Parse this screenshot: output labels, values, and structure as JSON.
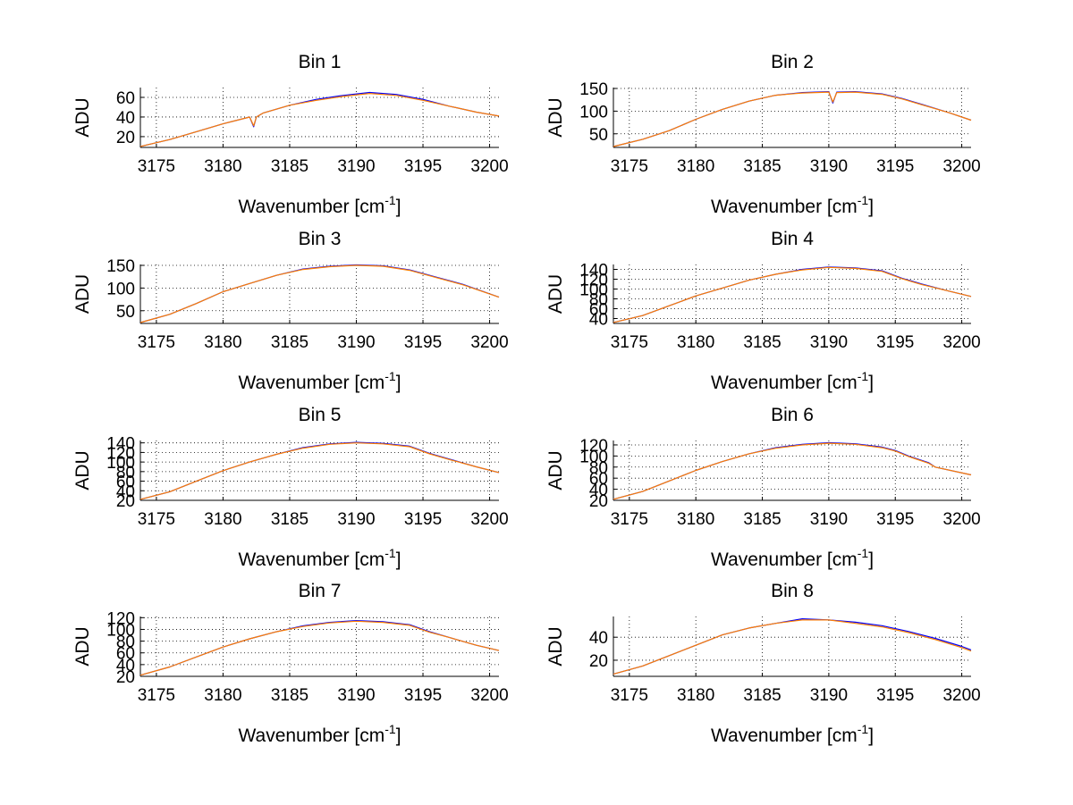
{
  "figure": {
    "background": "#ffffff"
  },
  "chart_data": [
    {
      "type": "line",
      "title": "Bin 1",
      "xlabel": "Wavenumber [cm",
      "xlabel_sup": "-1",
      "xlabel_end": "]",
      "ylabel": "ADU",
      "xlim": [
        3173.8,
        3200.7
      ],
      "ylim": [
        9,
        70
      ],
      "xticks": [
        3175,
        3180,
        3185,
        3190,
        3195,
        3200
      ],
      "yticks": [
        20,
        40,
        60
      ],
      "grid": true,
      "series": [
        {
          "color": "#0000ff",
          "x": [
            3173.8,
            3176,
            3178,
            3180,
            3182,
            3182.3,
            3182.5,
            3183,
            3185,
            3187,
            3189,
            3191,
            3193,
            3195,
            3197,
            3199,
            3200.7
          ],
          "y": [
            10,
            17,
            25,
            33,
            40,
            30,
            40,
            44,
            52,
            58,
            62,
            65,
            63,
            58,
            51,
            45,
            41
          ]
        },
        {
          "color": "#ff7f00",
          "x": [
            3173.8,
            3176,
            3178,
            3180,
            3182,
            3182.3,
            3182.5,
            3183,
            3185,
            3187,
            3189,
            3191,
            3193,
            3195,
            3197,
            3199,
            3200.7
          ],
          "y": [
            10,
            17,
            25,
            33,
            40,
            31,
            40,
            44,
            52,
            57,
            61,
            64,
            62,
            57,
            51,
            45,
            41
          ]
        }
      ]
    },
    {
      "type": "line",
      "title": "Bin 2",
      "xlabel": "Wavenumber [cm",
      "xlabel_sup": "-1",
      "xlabel_end": "]",
      "ylabel": "ADU",
      "xlim": [
        3173.8,
        3200.7
      ],
      "ylim": [
        20,
        152
      ],
      "xticks": [
        3175,
        3180,
        3185,
        3190,
        3195,
        3200
      ],
      "yticks": [
        50,
        100,
        150
      ],
      "grid": true,
      "series": [
        {
          "color": "#0000ff",
          "x": [
            3173.8,
            3176,
            3178,
            3180,
            3182,
            3184,
            3186,
            3188,
            3190,
            3190.3,
            3190.6,
            3192,
            3194,
            3195.5,
            3197,
            3199,
            3200.7
          ],
          "y": [
            22,
            38,
            57,
            82,
            104,
            122,
            135,
            141,
            143,
            118,
            142,
            143,
            138,
            128,
            115,
            97,
            80
          ]
        },
        {
          "color": "#ff7f00",
          "x": [
            3173.8,
            3176,
            3178,
            3180,
            3182,
            3184,
            3186,
            3188,
            3190,
            3190.3,
            3190.6,
            3192,
            3194,
            3195.5,
            3197,
            3199,
            3200.7
          ],
          "y": [
            22,
            38,
            57,
            82,
            104,
            122,
            135,
            140,
            142,
            120,
            141,
            142,
            137,
            127,
            114,
            97,
            80
          ]
        }
      ]
    },
    {
      "type": "line",
      "title": "Bin 3",
      "xlabel": "Wavenumber [cm",
      "xlabel_sup": "-1",
      "xlabel_end": "]",
      "ylabel": "ADU",
      "xlim": [
        3173.8,
        3200.7
      ],
      "ylim": [
        22,
        152
      ],
      "xticks": [
        3175,
        3180,
        3185,
        3190,
        3195,
        3200
      ],
      "yticks": [
        50,
        100,
        150
      ],
      "grid": true,
      "series": [
        {
          "color": "#0000ff",
          "x": [
            3173.8,
            3176,
            3178,
            3180,
            3182,
            3184,
            3186,
            3188,
            3190,
            3192,
            3194,
            3196,
            3198,
            3200.7
          ],
          "y": [
            24,
            42,
            66,
            92,
            110,
            128,
            142,
            148,
            151,
            149,
            140,
            124,
            108,
            80
          ]
        },
        {
          "color": "#ff7f00",
          "x": [
            3173.8,
            3176,
            3178,
            3180,
            3182,
            3184,
            3186,
            3188,
            3190,
            3192,
            3194,
            3196,
            3198,
            3200.7
          ],
          "y": [
            24,
            42,
            66,
            92,
            110,
            128,
            141,
            147,
            150,
            148,
            139,
            123,
            107,
            80
          ]
        }
      ]
    },
    {
      "type": "line",
      "title": "Bin 4",
      "xlabel": "Wavenumber [cm",
      "xlabel_sup": "-1",
      "xlabel_end": "]",
      "ylabel": "ADU",
      "xlim": [
        3173.8,
        3200.7
      ],
      "ylim": [
        30,
        150
      ],
      "xticks": [
        3175,
        3180,
        3185,
        3190,
        3195,
        3200
      ],
      "yticks": [
        40,
        60,
        80,
        100,
        120,
        140
      ],
      "ytick_labels": [
        "40",
        "60",
        "80",
        "100",
        "120",
        "140"
      ],
      "grid": true,
      "series": [
        {
          "color": "#0000ff",
          "x": [
            3173.8,
            3176,
            3178,
            3180,
            3182,
            3184,
            3186,
            3188,
            3190,
            3192,
            3194,
            3195.5,
            3197,
            3199,
            3200.7
          ],
          "y": [
            32,
            46,
            66,
            86,
            102,
            118,
            130,
            140,
            145,
            143,
            137,
            122,
            110,
            96,
            85
          ]
        },
        {
          "color": "#ff7f00",
          "x": [
            3173.8,
            3176,
            3178,
            3180,
            3182,
            3184,
            3186,
            3188,
            3190,
            3192,
            3194,
            3195.5,
            3197,
            3199,
            3200.7
          ],
          "y": [
            32,
            46,
            66,
            86,
            102,
            118,
            130,
            139,
            144,
            142,
            136,
            121,
            109,
            96,
            85
          ]
        }
      ]
    },
    {
      "type": "line",
      "title": "Bin 5",
      "xlabel": "Wavenumber [cm",
      "xlabel_sup": "-1",
      "xlabel_end": "]",
      "ylabel": "ADU",
      "xlim": [
        3173.8,
        3200.7
      ],
      "ylim": [
        20,
        145
      ],
      "xticks": [
        3175,
        3180,
        3185,
        3190,
        3195,
        3200
      ],
      "yticks": [
        20,
        40,
        60,
        80,
        100,
        120,
        140
      ],
      "ytick_labels": [
        "20",
        "40",
        "60",
        "80",
        "100",
        "120",
        "140"
      ],
      "grid": true,
      "series": [
        {
          "color": "#0000ff",
          "x": [
            3173.8,
            3176,
            3178,
            3180,
            3182,
            3184,
            3186,
            3188,
            3190,
            3192,
            3194,
            3195.5,
            3197,
            3199,
            3200.7
          ],
          "y": [
            22,
            38,
            60,
            82,
            100,
            116,
            130,
            138,
            141,
            139,
            133,
            118,
            106,
            90,
            78
          ]
        },
        {
          "color": "#ff7f00",
          "x": [
            3173.8,
            3176,
            3178,
            3180,
            3182,
            3184,
            3186,
            3188,
            3190,
            3192,
            3194,
            3195.5,
            3197,
            3199,
            3200.7
          ],
          "y": [
            22,
            38,
            60,
            82,
            100,
            116,
            129,
            137,
            140,
            138,
            132,
            117,
            105,
            90,
            78
          ]
        }
      ]
    },
    {
      "type": "line",
      "title": "Bin 6",
      "xlabel": "Wavenumber [cm",
      "xlabel_sup": "-1",
      "xlabel_end": "]",
      "ylabel": "ADU",
      "xlim": [
        3173.8,
        3200.7
      ],
      "ylim": [
        20,
        128
      ],
      "xticks": [
        3175,
        3180,
        3185,
        3190,
        3195,
        3200
      ],
      "yticks": [
        20,
        40,
        60,
        80,
        100,
        120
      ],
      "ytick_labels": [
        "20",
        "40",
        "60",
        "80",
        "100",
        "120"
      ],
      "grid": true,
      "series": [
        {
          "color": "#0000ff",
          "x": [
            3173.8,
            3176,
            3178,
            3180,
            3182,
            3184,
            3186,
            3188,
            3190,
            3192,
            3194,
            3195,
            3196,
            3197.5,
            3198,
            3200.7
          ],
          "y": [
            22,
            36,
            55,
            74,
            90,
            104,
            115,
            121,
            124,
            122,
            116,
            110,
            100,
            88,
            80,
            66
          ]
        },
        {
          "color": "#ff7f00",
          "x": [
            3173.8,
            3176,
            3178,
            3180,
            3182,
            3184,
            3186,
            3188,
            3190,
            3192,
            3194,
            3195,
            3196,
            3197.5,
            3198,
            3200.7
          ],
          "y": [
            22,
            36,
            55,
            74,
            90,
            104,
            114,
            120,
            123,
            121,
            115,
            109,
            99,
            87,
            80,
            66
          ]
        }
      ]
    },
    {
      "type": "line",
      "title": "Bin 7",
      "xlabel": "Wavenumber [cm",
      "xlabel_sup": "-1",
      "xlabel_end": "]",
      "ylabel": "ADU",
      "xlim": [
        3173.8,
        3200.7
      ],
      "ylim": [
        20,
        122
      ],
      "xticks": [
        3175,
        3180,
        3185,
        3190,
        3195,
        3200
      ],
      "yticks": [
        20,
        40,
        60,
        80,
        100,
        120
      ],
      "ytick_labels": [
        "20",
        "40",
        "60",
        "80",
        "100",
        "120"
      ],
      "grid": true,
      "series": [
        {
          "color": "#0000ff",
          "x": [
            3173.8,
            3176,
            3178,
            3180,
            3182,
            3184,
            3186,
            3188,
            3190,
            3192,
            3194,
            3195.5,
            3197,
            3199,
            3200.7
          ],
          "y": [
            22,
            36,
            53,
            70,
            84,
            96,
            106,
            112,
            115,
            113,
            108,
            96,
            86,
            73,
            64
          ]
        },
        {
          "color": "#ff7f00",
          "x": [
            3173.8,
            3176,
            3178,
            3180,
            3182,
            3184,
            3186,
            3188,
            3190,
            3192,
            3194,
            3195.5,
            3197,
            3199,
            3200.7
          ],
          "y": [
            22,
            36,
            53,
            70,
            84,
            96,
            105,
            111,
            114,
            112,
            107,
            95,
            86,
            73,
            64
          ]
        }
      ]
    },
    {
      "type": "line",
      "title": "Bin 8",
      "xlabel": "Wavenumber [cm",
      "xlabel_sup": "-1",
      "xlabel_end": "]",
      "ylabel": "ADU",
      "xlim": [
        3173.8,
        3200.7
      ],
      "ylim": [
        6,
        58
      ],
      "xticks": [
        3175,
        3180,
        3185,
        3190,
        3195,
        3200
      ],
      "yticks": [
        20,
        40
      ],
      "grid": true,
      "series": [
        {
          "color": "#0000ff",
          "x": [
            3173.8,
            3176,
            3178,
            3180,
            3182,
            3184,
            3186,
            3188,
            3190,
            3192,
            3194,
            3196,
            3198,
            3200,
            3200.7
          ],
          "y": [
            8,
            15,
            24,
            33,
            42,
            48,
            52,
            56,
            55,
            53,
            50,
            45,
            39,
            32,
            29
          ]
        },
        {
          "color": "#ff7f00",
          "x": [
            3173.8,
            3176,
            3178,
            3180,
            3182,
            3184,
            3186,
            3188,
            3190,
            3192,
            3194,
            3196,
            3198,
            3200,
            3200.7
          ],
          "y": [
            8,
            15,
            24,
            33,
            42,
            48,
            52,
            55,
            55,
            52,
            49,
            44,
            38,
            31,
            28
          ]
        }
      ]
    }
  ]
}
